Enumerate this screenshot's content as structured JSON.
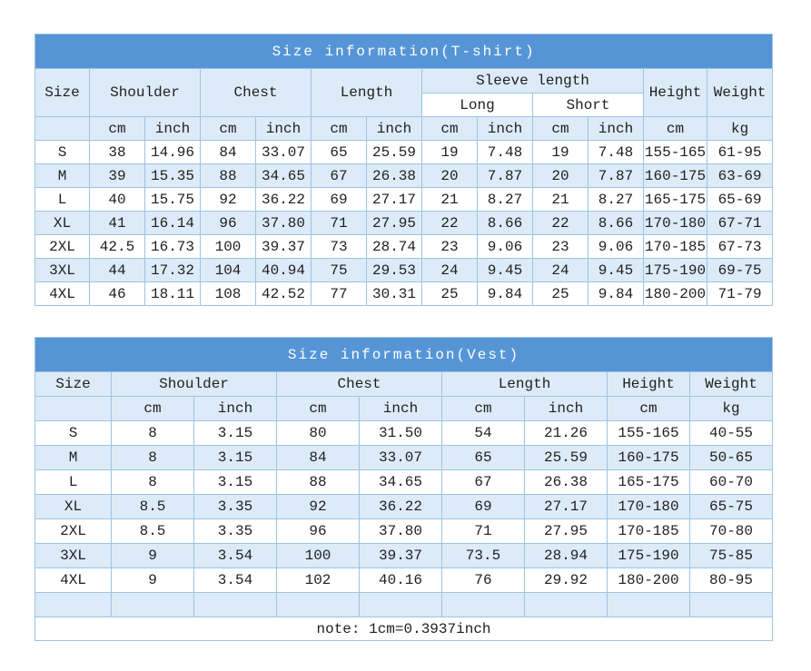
{
  "colors": {
    "title_bar": "#5595d6",
    "title_text": "#ffffff",
    "band_fill": "#dcebf7",
    "row_fill": "#ffffff",
    "border": "#9dc3e6",
    "text": "#1f1f1f"
  },
  "chart_data": [
    {
      "type": "table",
      "title": "Size information(T-shirt)",
      "headers": {
        "size": "Size",
        "shoulder": "Shoulder",
        "chest": "Chest",
        "length": "Length",
        "sleeve": "Sleeve length",
        "sleeve_long": "Long",
        "sleeve_short": "Short",
        "height": "Height",
        "weight": "Weight"
      },
      "units": [
        "",
        "cm",
        "inch",
        "cm",
        "inch",
        "cm",
        "inch",
        "cm",
        "inch",
        "cm",
        "inch",
        "cm",
        "kg"
      ],
      "rows": [
        [
          "S",
          "38",
          "14.96",
          "84",
          "33.07",
          "65",
          "25.59",
          "19",
          "7.48",
          "19",
          "7.48",
          "155-165",
          "61-95"
        ],
        [
          "M",
          "39",
          "15.35",
          "88",
          "34.65",
          "67",
          "26.38",
          "20",
          "7.87",
          "20",
          "7.87",
          "160-175",
          "63-69"
        ],
        [
          "L",
          "40",
          "15.75",
          "92",
          "36.22",
          "69",
          "27.17",
          "21",
          "8.27",
          "21",
          "8.27",
          "165-175",
          "65-69"
        ],
        [
          "XL",
          "41",
          "16.14",
          "96",
          "37.80",
          "71",
          "27.95",
          "22",
          "8.66",
          "22",
          "8.66",
          "170-180",
          "67-71"
        ],
        [
          "2XL",
          "42.5",
          "16.73",
          "100",
          "39.37",
          "73",
          "28.74",
          "23",
          "9.06",
          "23",
          "9.06",
          "170-185",
          "67-73"
        ],
        [
          "3XL",
          "44",
          "17.32",
          "104",
          "40.94",
          "75",
          "29.53",
          "24",
          "9.45",
          "24",
          "9.45",
          "175-190",
          "69-75"
        ],
        [
          "4XL",
          "46",
          "18.11",
          "108",
          "42.52",
          "77",
          "30.31",
          "25",
          "9.84",
          "25",
          "9.84",
          "180-200",
          "71-79"
        ]
      ]
    },
    {
      "type": "table",
      "title": "Size information(Vest)",
      "headers": {
        "size": "Size",
        "shoulder": "Shoulder",
        "chest": "Chest",
        "length": "Length",
        "height": "Height",
        "weight": "Weight"
      },
      "units": [
        "",
        "cm",
        "inch",
        "cm",
        "inch",
        "cm",
        "inch",
        "cm",
        "kg"
      ],
      "rows": [
        [
          "S",
          "8",
          "3.15",
          "80",
          "31.50",
          "54",
          "21.26",
          "155-165",
          "40-55"
        ],
        [
          "M",
          "8",
          "3.15",
          "84",
          "33.07",
          "65",
          "25.59",
          "160-175",
          "50-65"
        ],
        [
          "L",
          "8",
          "3.15",
          "88",
          "34.65",
          "67",
          "26.38",
          "165-175",
          "60-70"
        ],
        [
          "XL",
          "8.5",
          "3.35",
          "92",
          "36.22",
          "69",
          "27.17",
          "170-180",
          "65-75"
        ],
        [
          "2XL",
          "8.5",
          "3.35",
          "96",
          "37.80",
          "71",
          "27.95",
          "170-185",
          "70-80"
        ],
        [
          "3XL",
          "9",
          "3.54",
          "100",
          "39.37",
          "73.5",
          "28.94",
          "175-190",
          "75-85"
        ],
        [
          "4XL",
          "9",
          "3.54",
          "102",
          "40.16",
          "76",
          "29.92",
          "180-200",
          "80-95"
        ],
        [
          "",
          "",
          "",
          "",
          "",
          "",
          "",
          "",
          ""
        ]
      ],
      "note": "note: 1cm=0.3937inch"
    }
  ]
}
